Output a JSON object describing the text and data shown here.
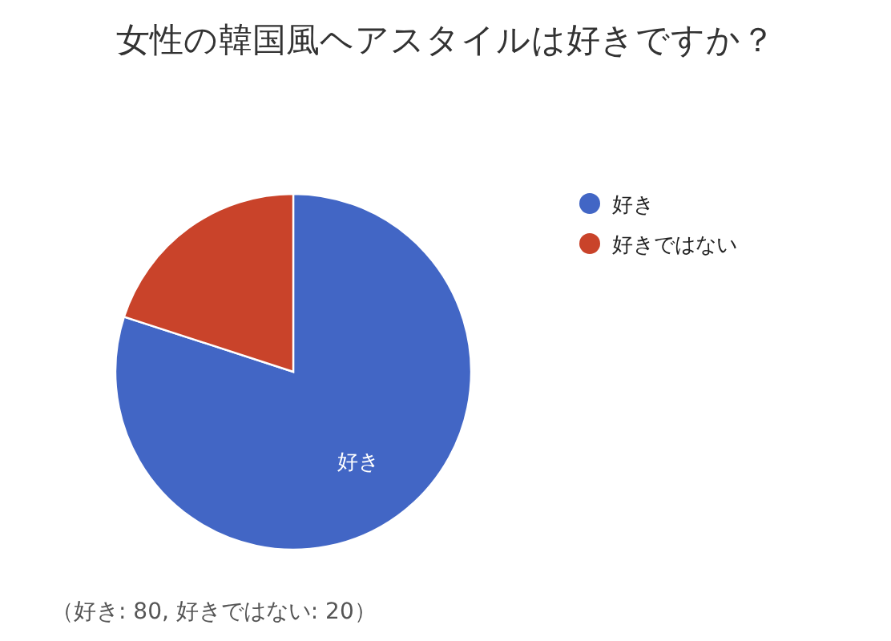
{
  "chart_data": {
    "type": "pie",
    "title": "女性の韓国風ヘアスタイルは好きですか？",
    "categories": [
      "好き",
      "好きではない"
    ],
    "values": [
      80,
      20
    ],
    "colors": [
      "#4266c5",
      "#c9432a"
    ],
    "value_labels": [
      "好き",
      null
    ],
    "legend": "top right",
    "annotations": [
      "（好き: 80, 好きではない: 20）"
    ]
  }
}
